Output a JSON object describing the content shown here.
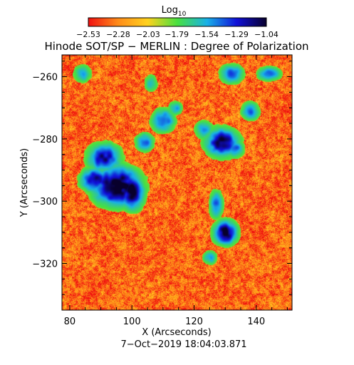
{
  "chart_data": {
    "type": "heatmap",
    "title": "Hinode SOT/SP − MERLIN : Degree of Polarization",
    "xlabel": "X (Arcseconds)",
    "ylabel": "Y (Arcseconds)",
    "timestamp": "7−Oct−2019 18:04:03.871",
    "xlim": [
      77.5,
      151.5
    ],
    "ylim": [
      -335,
      -253
    ],
    "x_ticks": [
      80,
      100,
      120,
      140
    ],
    "y_ticks": [
      -260,
      -280,
      -300,
      -320
    ],
    "x_tick_labels": [
      "80",
      "100",
      "120",
      "140"
    ],
    "y_tick_labels": [
      "−260",
      "−280",
      "−300",
      "−320"
    ],
    "colorbar": {
      "label_base": "Log",
      "label_sub": "10",
      "range": [
        -2.53,
        -1.04
      ],
      "tick_values": [
        -2.53,
        -2.28,
        -2.03,
        -1.79,
        -1.54,
        -1.29,
        -1.04
      ],
      "tick_labels": [
        "−2.53",
        "−2.28",
        "−2.03",
        "−1.79",
        "−1.54",
        "−1.29",
        "−1.04"
      ],
      "colors": [
        "#f01010",
        "#ff8c1a",
        "#ffd21e",
        "#48e040",
        "#18b0e8",
        "#1010d8",
        "#08002c"
      ]
    },
    "background_value": -2.35,
    "features": [
      {
        "x": 95,
        "y": -295,
        "strength": 1.0,
        "sx": 5,
        "sy": 4
      },
      {
        "x": 91,
        "y": -286,
        "strength": 0.75,
        "sx": 3.5,
        "sy": 3
      },
      {
        "x": 100,
        "y": -297,
        "strength": 0.95,
        "sx": 2.5,
        "sy": 3.5
      },
      {
        "x": 88,
        "y": -293,
        "strength": 0.8,
        "sx": 3,
        "sy": 2.5
      },
      {
        "x": 104,
        "y": -281,
        "strength": 0.55,
        "sx": 2,
        "sy": 2
      },
      {
        "x": 110,
        "y": -274,
        "strength": 0.6,
        "sx": 2.5,
        "sy": 2.5
      },
      {
        "x": 114,
        "y": -270,
        "strength": 0.45,
        "sx": 1.5,
        "sy": 1.5
      },
      {
        "x": 129,
        "y": -281,
        "strength": 0.85,
        "sx": 3.5,
        "sy": 3
      },
      {
        "x": 123,
        "y": -277,
        "strength": 0.45,
        "sx": 2,
        "sy": 2
      },
      {
        "x": 133,
        "y": -283,
        "strength": 0.55,
        "sx": 2,
        "sy": 2
      },
      {
        "x": 130,
        "y": -310,
        "strength": 0.9,
        "sx": 2.5,
        "sy": 2.5
      },
      {
        "x": 127,
        "y": -301,
        "strength": 0.55,
        "sx": 1.5,
        "sy": 3
      },
      {
        "x": 125,
        "y": -318,
        "strength": 0.45,
        "sx": 1.5,
        "sy": 1.5
      },
      {
        "x": 132,
        "y": -259,
        "strength": 0.6,
        "sx": 2.5,
        "sy": 2
      },
      {
        "x": 138,
        "y": -271,
        "strength": 0.5,
        "sx": 2,
        "sy": 2
      },
      {
        "x": 144,
        "y": -259,
        "strength": 0.55,
        "sx": 2.5,
        "sy": 1.5
      },
      {
        "x": 84,
        "y": -259,
        "strength": 0.4,
        "sx": 2,
        "sy": 2
      },
      {
        "x": 106,
        "y": -262,
        "strength": 0.35,
        "sx": 1.5,
        "sy": 2
      }
    ]
  }
}
